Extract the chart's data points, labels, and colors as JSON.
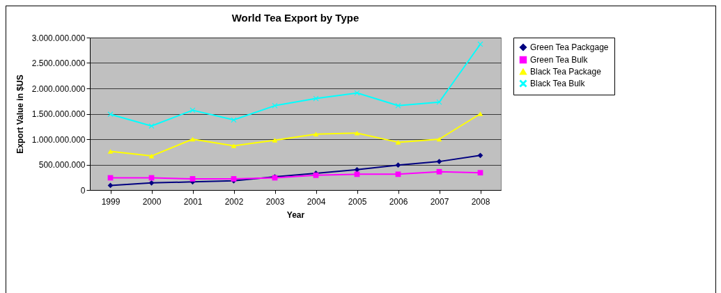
{
  "chart_data": {
    "type": "line",
    "title": "World Tea Export by Type",
    "xlabel": "Year",
    "ylabel": "Export Value in $US",
    "categories": [
      "1999",
      "2000",
      "2001",
      "2002",
      "2003",
      "2004",
      "2005",
      "2006",
      "2007",
      "2008"
    ],
    "series": [
      {
        "name": "Green Tea Packgage",
        "color": "#000080",
        "marker": "diamond",
        "values": [
          90000000,
          140000000,
          160000000,
          180000000,
          260000000,
          330000000,
          400000000,
          490000000,
          560000000,
          680000000
        ]
      },
      {
        "name": "Green Tea Bulk",
        "color": "#ff00ff",
        "marker": "square",
        "values": [
          240000000,
          240000000,
          220000000,
          220000000,
          240000000,
          290000000,
          310000000,
          310000000,
          360000000,
          340000000
        ]
      },
      {
        "name": "Black Tea Package",
        "color": "#ffff00",
        "marker": "triangle",
        "values": [
          760000000,
          670000000,
          1000000000,
          870000000,
          980000000,
          1100000000,
          1120000000,
          940000000,
          1000000000,
          1500000000
        ]
      },
      {
        "name": "Black Tea Bulk",
        "color": "#00ffff",
        "marker": "cross",
        "values": [
          1490000000,
          1260000000,
          1570000000,
          1380000000,
          1660000000,
          1800000000,
          1910000000,
          1660000000,
          1730000000,
          2870000000
        ]
      }
    ],
    "ylim": [
      0,
      3000000000
    ],
    "yticks": [
      0,
      {
        "value": 500000000,
        "label": "500.000.000"
      },
      {
        "value": 1000000000,
        "label": "1.000.000.000"
      },
      {
        "value": 1500000000,
        "label": "1.500.000.000"
      },
      {
        "value": 2000000000,
        "label": "2.000.000.000"
      },
      {
        "value": 2500000000,
        "label": "2.500.000.000"
      },
      {
        "value": 3000000000,
        "label": "3.000.000.000"
      }
    ],
    "grid": "y",
    "legend": "right"
  }
}
